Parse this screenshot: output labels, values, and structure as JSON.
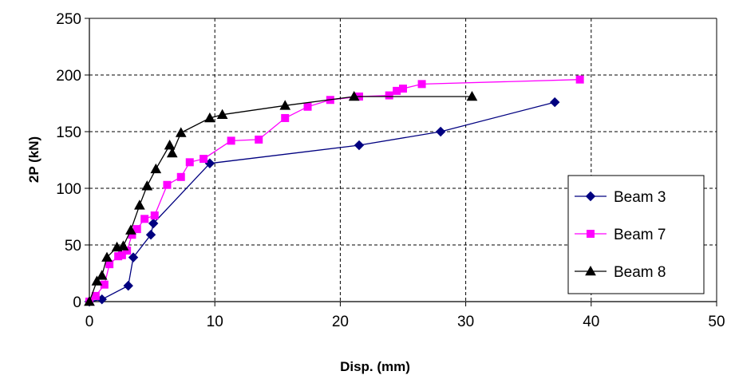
{
  "chart_data": {
    "type": "line",
    "title": "",
    "xlabel": "Disp. (mm)",
    "ylabel": "2P (kN)",
    "xlim": [
      0,
      50
    ],
    "ylim": [
      0,
      250
    ],
    "xticks": [
      "0",
      "10",
      "20",
      "30",
      "40",
      "50"
    ],
    "yticks": [
      "0",
      "50",
      "100",
      "150",
      "200",
      "250"
    ],
    "grid": true,
    "legend_position": "right",
    "series": [
      {
        "name": "Beam 3",
        "color": "#000080",
        "marker": "diamond",
        "points": [
          [
            0,
            0
          ],
          [
            1.0,
            2
          ],
          [
            3.1,
            14
          ],
          [
            3.5,
            39
          ],
          [
            4.9,
            59
          ],
          [
            5.1,
            69
          ],
          [
            9.6,
            122
          ],
          [
            21.5,
            138
          ],
          [
            28.0,
            150
          ],
          [
            37.1,
            176
          ]
        ]
      },
      {
        "name": "Beam 7",
        "color": "#ff00ff",
        "marker": "square",
        "points": [
          [
            0,
            0
          ],
          [
            0.5,
            5
          ],
          [
            1.2,
            15
          ],
          [
            1.6,
            33
          ],
          [
            2.3,
            40
          ],
          [
            2.6,
            41
          ],
          [
            3.0,
            45
          ],
          [
            3.4,
            59
          ],
          [
            3.8,
            64
          ],
          [
            4.4,
            73
          ],
          [
            5.2,
            76
          ],
          [
            6.2,
            103
          ],
          [
            7.3,
            110
          ],
          [
            8.0,
            123
          ],
          [
            9.1,
            126
          ],
          [
            11.3,
            142
          ],
          [
            13.5,
            143
          ],
          [
            15.6,
            162
          ],
          [
            17.4,
            172
          ],
          [
            19.2,
            178
          ],
          [
            21.5,
            181
          ],
          [
            23.9,
            182
          ],
          [
            24.5,
            186
          ],
          [
            25.0,
            188
          ],
          [
            26.5,
            192
          ],
          [
            39.1,
            196
          ]
        ]
      },
      {
        "name": "Beam 8",
        "color": "#000000",
        "marker": "triangle",
        "points": [
          [
            0,
            0
          ],
          [
            0.6,
            18
          ],
          [
            1.0,
            23
          ],
          [
            1.4,
            39
          ],
          [
            2.2,
            48
          ],
          [
            2.7,
            49
          ],
          [
            3.3,
            63
          ],
          [
            4.0,
            85
          ],
          [
            4.6,
            102
          ],
          [
            5.3,
            117
          ],
          [
            6.4,
            138
          ],
          [
            6.6,
            131
          ],
          [
            7.3,
            149
          ],
          [
            9.6,
            162
          ],
          [
            10.6,
            165
          ],
          [
            15.6,
            173
          ],
          [
            21.1,
            181
          ],
          [
            30.5,
            181
          ]
        ]
      }
    ]
  }
}
